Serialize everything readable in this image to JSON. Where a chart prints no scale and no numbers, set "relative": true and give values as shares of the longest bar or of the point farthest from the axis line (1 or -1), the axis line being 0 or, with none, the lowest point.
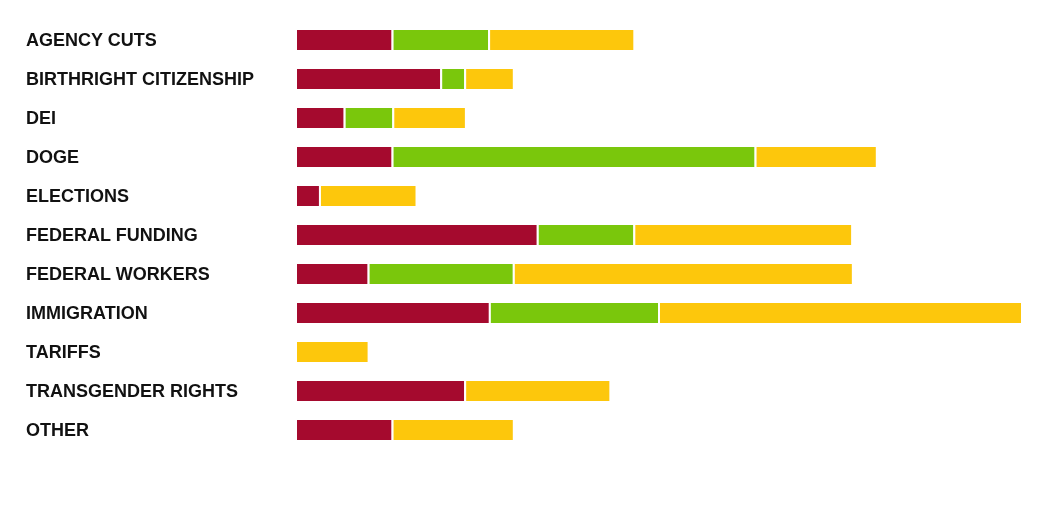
{
  "chart_data": {
    "type": "bar",
    "orientation": "horizontal",
    "stacked": true,
    "relative": true,
    "legend": false,
    "grid": false,
    "categories": [
      "AGENCY CUTS",
      "BIRTHRIGHT CITIZENSHIP",
      "DEI",
      "DOGE",
      "ELECTIONS",
      "FEDERAL FUNDING",
      "FEDERAL WORKERS",
      "IMMIGRATION",
      "TARIFFS",
      "TRANSGENDER RIGHTS",
      "OTHER"
    ],
    "series": [
      {
        "color": "#a50a2e",
        "values": [
          0.133,
          0.2,
          0.067,
          0.133,
          0.033,
          0.333,
          0.1,
          0.267,
          0,
          0.233,
          0.133
        ]
      },
      {
        "color": "#7ac70c",
        "values": [
          0.133,
          0.033,
          0.067,
          0.5,
          0,
          0.133,
          0.2,
          0.233,
          0,
          0,
          0
        ]
      },
      {
        "color": "#fdc70c",
        "values": [
          0.2,
          0.067,
          0.1,
          0.167,
          0.133,
          0.3,
          0.467,
          0.5,
          0.1,
          0.2,
          0.167
        ]
      }
    ]
  }
}
